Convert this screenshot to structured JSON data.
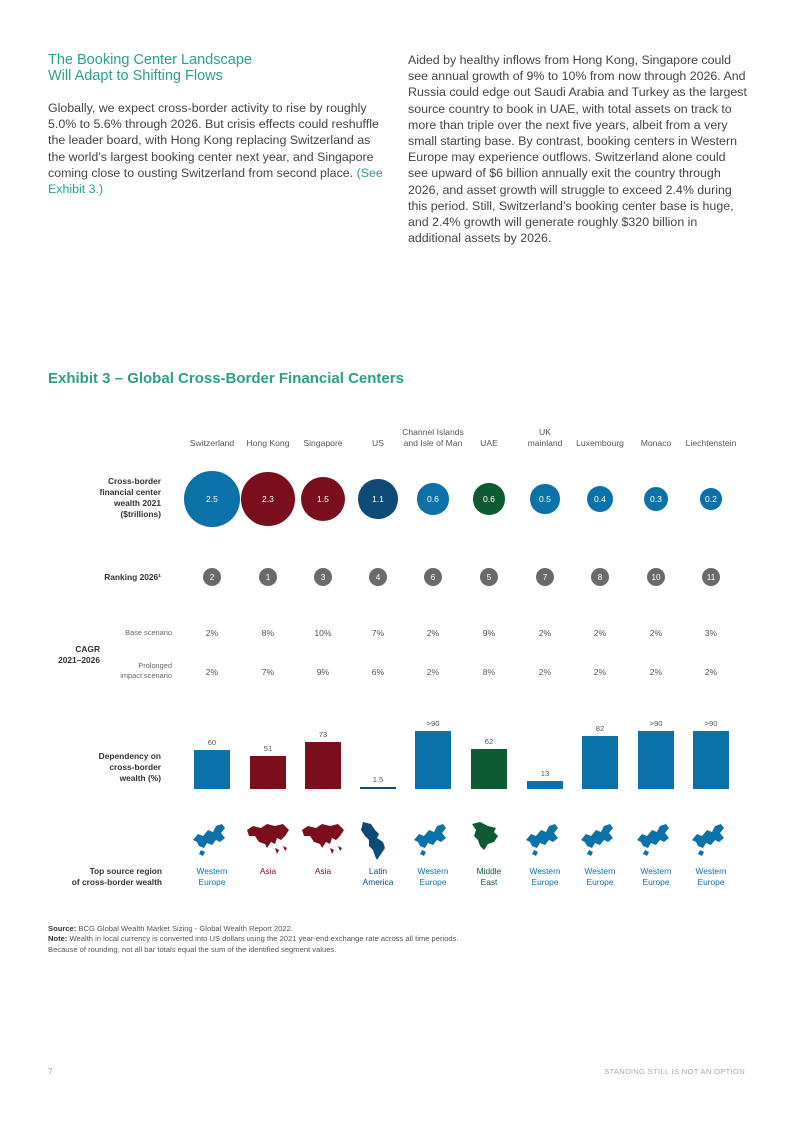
{
  "heading": {
    "line1": "The Booking Center Landscape",
    "line2": "Will Adapt to Shifting Flows"
  },
  "left_paragraph": {
    "text": "Globally, we expect cross-border activity to rise by roughly 5.0% to 5.6% through 2026. But crisis effects could reshuffle the leader board, with Hong Kong replacing Switzerland as the world’s largest booking center next year, and Singapore coming close to ousting Switzerland from second place.",
    "link": "(See Exhibit 3.)"
  },
  "right_paragraph": "Aided by healthy inflows from Hong Kong, Singapore could see annual growth of 9% to 10% from now through 2026. And Russia could edge out Saudi Arabia and Turkey as the largest source country to book in UAE, with total assets on track to more than triple over the next five years, albeit from a very small starting base. By contrast, booking centers in Western Europe may experience outflows. Switzerland alone could see upward of $6 billion annually exit the country through 2026, and asset growth will struggle to exceed 2.4% during this period. Still, Switzerland’s booking center base is huge, and 2.4% growth will generate roughly $320 billion in additional assets by 2026.",
  "exhibit_title": "Exhibit 3 – Global Cross-Border Financial Centers",
  "row_labels": {
    "wealth": [
      "Cross-border",
      "financial center",
      "wealth 2021",
      "($trillions)"
    ],
    "ranking": "Ranking 2026¹",
    "cagr": [
      "CAGR",
      "2021–2026"
    ],
    "base": "Base scenario",
    "prolonged": [
      "Prolonged",
      "impact scenario"
    ],
    "dependency": [
      "Dependency on",
      "cross-border",
      "wealth (%)"
    ],
    "source": [
      "Top source region",
      "of cross-border wealth"
    ]
  },
  "colors": {
    "blue": "#0a72a8",
    "darkred": "#7a0e1d",
    "navy": "#0d4a78",
    "green": "#0d5a33",
    "teal": "#2aa08a"
  },
  "chart_data": {
    "type": "table",
    "centers": [
      {
        "name": [
          "Switzerland"
        ],
        "wealth": "2.5",
        "rank": "2",
        "base": "2%",
        "prolonged": "2%",
        "dependency": 60,
        "dependency_label": "60",
        "region": [
          "Western",
          "Europe"
        ],
        "region_key": "europe",
        "color": "blue"
      },
      {
        "name": [
          "Hong Kong"
        ],
        "wealth": "2.3",
        "rank": "1",
        "base": "8%",
        "prolonged": "7%",
        "dependency": 51,
        "dependency_label": "51",
        "region": [
          "Asia"
        ],
        "region_key": "asia",
        "color": "darkred"
      },
      {
        "name": [
          "Singapore"
        ],
        "wealth": "1.5",
        "rank": "3",
        "base": "10%",
        "prolonged": "9%",
        "dependency": 73,
        "dependency_label": "73",
        "region": [
          "Asia"
        ],
        "region_key": "asia",
        "color": "darkred"
      },
      {
        "name": [
          "US"
        ],
        "wealth": "1.1",
        "rank": "4",
        "base": "7%",
        "prolonged": "6%",
        "dependency": 1.5,
        "dependency_label": "1.5",
        "region": [
          "Latin",
          "America"
        ],
        "region_key": "latam",
        "color": "navy"
      },
      {
        "name": [
          "Channel Islands",
          "and Isle of Man"
        ],
        "wealth": "0.6",
        "rank": "6",
        "base": "2%",
        "prolonged": "2%",
        "dependency": 90,
        "dependency_label": ">90",
        "region": [
          "Western",
          "Europe"
        ],
        "region_key": "europe",
        "color": "blue"
      },
      {
        "name": [
          "UAE"
        ],
        "wealth": "0.6",
        "rank": "5",
        "base": "9%",
        "prolonged": "8%",
        "dependency": 62,
        "dependency_label": "62",
        "region": [
          "Middle",
          "East"
        ],
        "region_key": "mideast",
        "color": "green"
      },
      {
        "name": [
          "UK",
          "mainland"
        ],
        "wealth": "0.5",
        "rank": "7",
        "base": "2%",
        "prolonged": "2%",
        "dependency": 13,
        "dependency_label": "13",
        "region": [
          "Western",
          "Europe"
        ],
        "region_key": "europe",
        "color": "blue"
      },
      {
        "name": [
          "Luxembourg"
        ],
        "wealth": "0.4",
        "rank": "8",
        "base": "2%",
        "prolonged": "2%",
        "dependency": 82,
        "dependency_label": "82",
        "region": [
          "Western",
          "Europe"
        ],
        "region_key": "europe",
        "color": "blue"
      },
      {
        "name": [
          "Monaco"
        ],
        "wealth": "0.3",
        "rank": "10",
        "base": "2%",
        "prolonged": "2%",
        "dependency": 90,
        "dependency_label": ">90",
        "region": [
          "Western",
          "Europe"
        ],
        "region_key": "europe",
        "color": "blue"
      },
      {
        "name": [
          "Liechtenstein"
        ],
        "wealth": "0.2",
        "rank": "11",
        "base": "3%",
        "prolonged": "2%",
        "dependency": 90,
        "dependency_label": ">90",
        "region": [
          "Western",
          "Europe"
        ],
        "region_key": "europe",
        "color": "blue"
      }
    ]
  },
  "notes": {
    "source_label": "Source:",
    "source_text": "BCG Global Wealth Market Sizing - Global Wealth Report 2022.",
    "note_label": "Note:",
    "note_text1": "Wealth in local currency is converted into US dollars using the 2021 year-end exchange rate across all time periods.",
    "note_text2": "Because of rounding, not all bar totals equal the sum of the identified segment values."
  },
  "footer": {
    "page": "7",
    "title": "STANDING STILL IS NOT AN OPTION"
  }
}
